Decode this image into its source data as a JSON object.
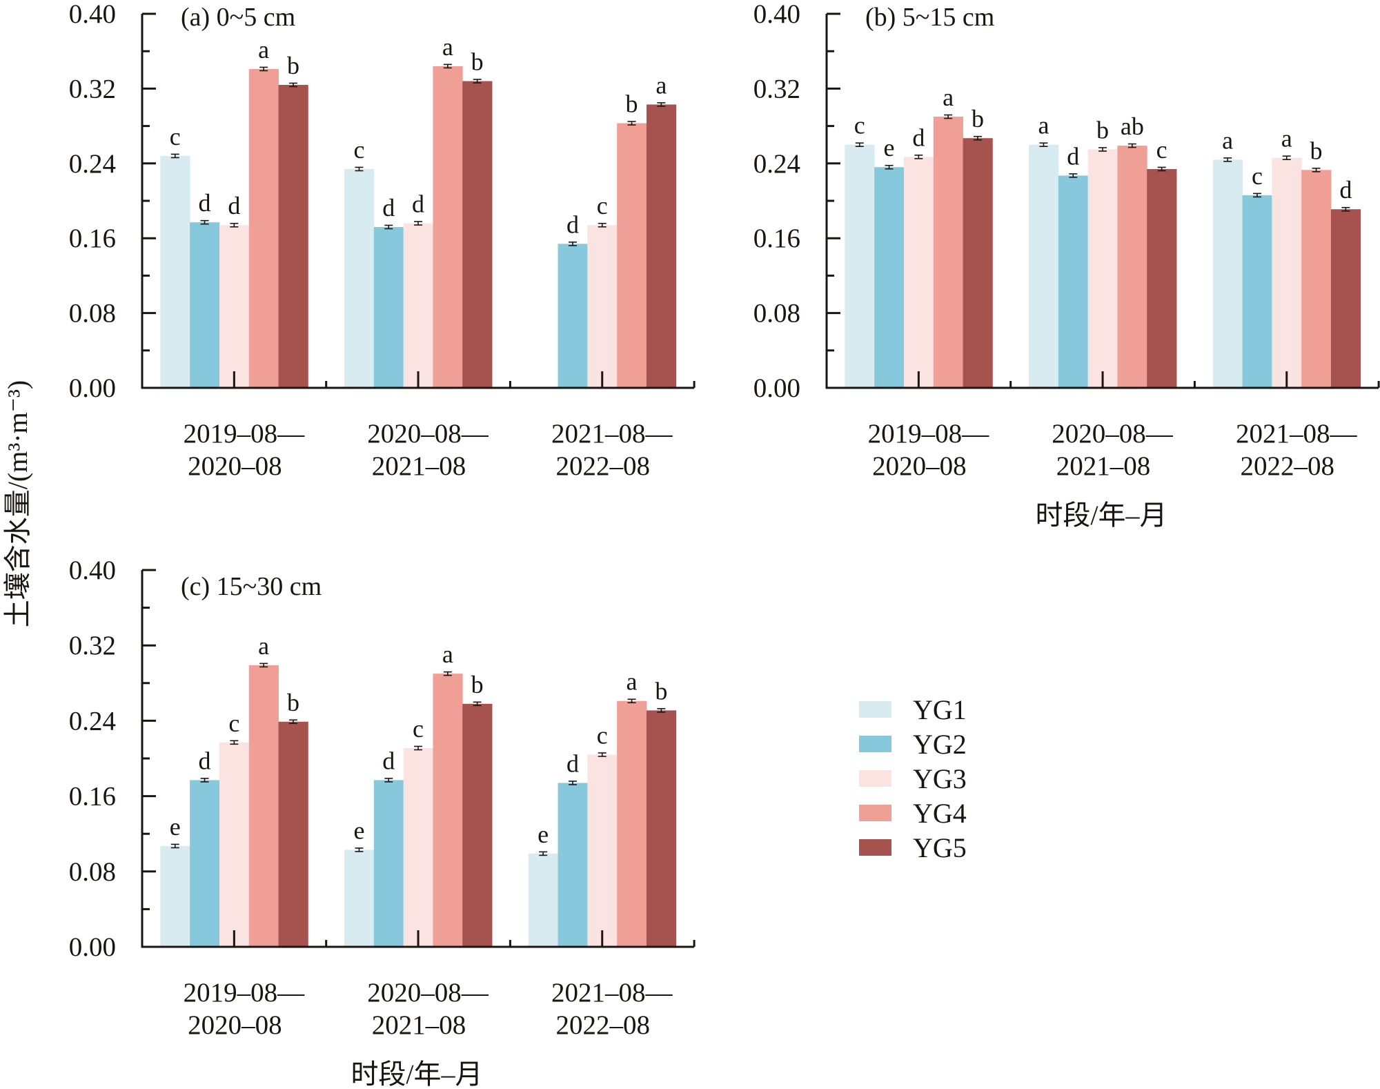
{
  "chart_data": {
    "type": "bar",
    "ylabel": "土壤含水量/(m³·m⁻³)",
    "xlabel": "时段/年–月",
    "ylim": [
      0,
      0.4
    ],
    "yticks": [
      "0.00",
      "0.08",
      "0.16",
      "0.24",
      "0.32",
      "0.40"
    ],
    "ytick_values": [
      0,
      0.08,
      0.16,
      0.24,
      0.32,
      0.4
    ],
    "grid": false,
    "legend_position": "bottom-right",
    "categories": [
      [
        "2019–08—",
        "2020–08"
      ],
      [
        "2020–08—",
        "2021–08"
      ],
      [
        "2021–08—",
        "2022–08"
      ]
    ],
    "series_names": [
      "YG1",
      "YG2",
      "YG3",
      "YG4",
      "YG5"
    ],
    "series_colors": [
      "#d8ebf0",
      "#88c8dc",
      "#fbe3e2",
      "#ef9f95",
      "#a6524f"
    ],
    "panels": [
      {
        "id": "a",
        "title": "(a) 0~5 cm",
        "show_xlabel": false,
        "series": [
          {
            "name": "YG1",
            "values": [
              0.248,
              0.234,
              0
            ],
            "labels": [
              "c",
              "c",
              ""
            ]
          },
          {
            "name": "YG2",
            "values": [
              0.177,
              0.172,
              0.154
            ],
            "labels": [
              "d",
              "d",
              "d"
            ]
          },
          {
            "name": "YG3",
            "values": [
              0.174,
              0.176,
              0.174
            ],
            "labels": [
              "d",
              "d",
              "c"
            ]
          },
          {
            "name": "YG4",
            "values": [
              0.341,
              0.344,
              0.283
            ],
            "labels": [
              "a",
              "a",
              "b"
            ]
          },
          {
            "name": "YG5",
            "values": [
              0.324,
              0.328,
              0.303
            ],
            "labels": [
              "b",
              "b",
              "a"
            ]
          }
        ]
      },
      {
        "id": "b",
        "title": "(b) 5~15 cm",
        "show_xlabel": true,
        "series": [
          {
            "name": "YG1",
            "values": [
              0.26,
              0.26,
              0.244
            ],
            "labels": [
              "c",
              "a",
              "a"
            ]
          },
          {
            "name": "YG2",
            "values": [
              0.236,
              0.227,
              0.206
            ],
            "labels": [
              "e",
              "d",
              "c"
            ]
          },
          {
            "name": "YG3",
            "values": [
              0.247,
              0.255,
              0.246
            ],
            "labels": [
              "d",
              "b",
              "a"
            ]
          },
          {
            "name": "YG4",
            "values": [
              0.29,
              0.259,
              0.233
            ],
            "labels": [
              "a",
              "ab",
              "b"
            ]
          },
          {
            "name": "YG5",
            "values": [
              0.267,
              0.234,
              0.191
            ],
            "labels": [
              "b",
              "c",
              "d"
            ]
          }
        ]
      },
      {
        "id": "c",
        "title": "(c) 15~30 cm",
        "show_xlabel": true,
        "series": [
          {
            "name": "YG1",
            "values": [
              0.107,
              0.103,
              0.099
            ],
            "labels": [
              "e",
              "e",
              "e"
            ]
          },
          {
            "name": "YG2",
            "values": [
              0.177,
              0.177,
              0.174
            ],
            "labels": [
              "d",
              "d",
              "d"
            ]
          },
          {
            "name": "YG3",
            "values": [
              0.217,
              0.211,
              0.204
            ],
            "labels": [
              "c",
              "c",
              "c"
            ]
          },
          {
            "name": "YG4",
            "values": [
              0.299,
              0.29,
              0.261
            ],
            "labels": [
              "a",
              "a",
              "a"
            ]
          },
          {
            "name": "YG5",
            "values": [
              0.239,
              0.258,
              0.251
            ],
            "labels": [
              "b",
              "b",
              "b"
            ]
          }
        ]
      }
    ]
  }
}
